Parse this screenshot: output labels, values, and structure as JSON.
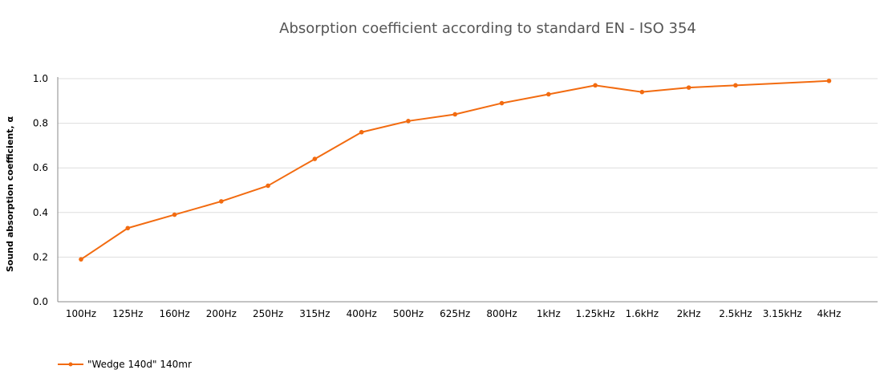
{
  "chart_data": {
    "type": "line",
    "title": "Absorption coefficient according to standard EN - ISO 354",
    "xlabel": "",
    "ylabel": "Sound absorption coefficient, α",
    "ylim": [
      0,
      1.0
    ],
    "yticks": [
      "0.0",
      "0.2",
      "0.4",
      "0.6",
      "0.8",
      "1.0"
    ],
    "grid": true,
    "legend_position": "bottom-left",
    "categories": [
      "100Hz",
      "125Hz",
      "160Hz",
      "200Hz",
      "250Hz",
      "315Hz",
      "400Hz",
      "500Hz",
      "625Hz",
      "800Hz",
      "1kHz",
      "1.25kHz",
      "1.6kHz",
      "2kHz",
      "2.5kHz",
      "3.15kHz",
      "4kHz"
    ],
    "series": [
      {
        "name": "\"Wedge 140d\" 140mr",
        "color": "#f26b10",
        "values": [
          0.19,
          0.33,
          0.39,
          0.45,
          0.52,
          0.64,
          0.76,
          0.81,
          0.84,
          0.89,
          0.93,
          0.97,
          0.94,
          0.96,
          0.97,
          null,
          0.99
        ]
      }
    ]
  }
}
